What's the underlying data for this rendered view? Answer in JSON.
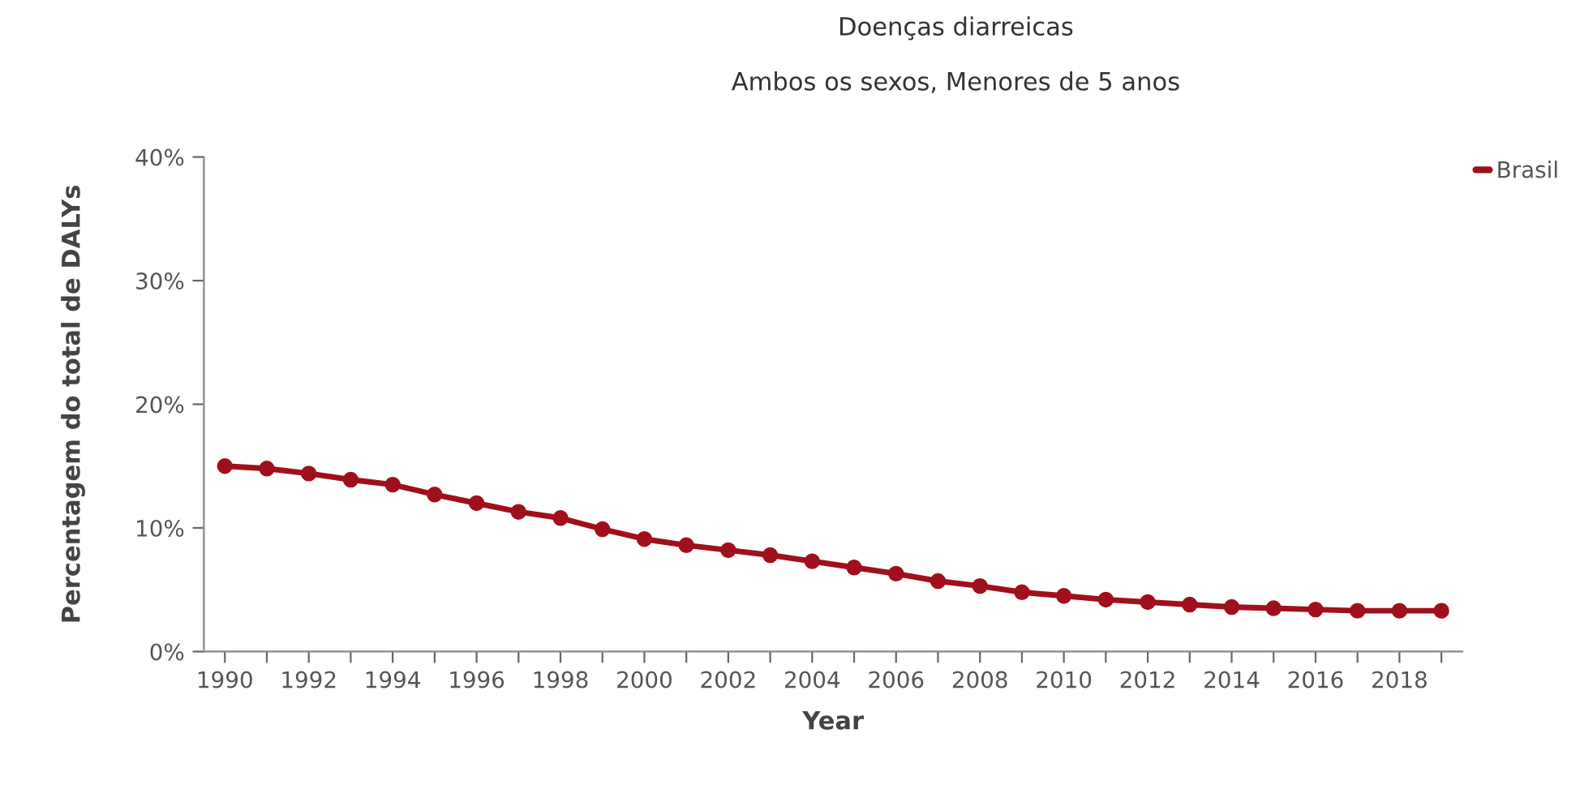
{
  "chart_data": {
    "type": "line",
    "title": "Doenças diarreicas",
    "subtitle": "Ambos os sexos, Menores de 5 anos",
    "xlabel": "Year",
    "ylabel": "Percentagem do total de DALYs",
    "x": [
      1990,
      1991,
      1992,
      1993,
      1994,
      1995,
      1996,
      1997,
      1998,
      1999,
      2000,
      2001,
      2002,
      2003,
      2004,
      2005,
      2006,
      2007,
      2008,
      2009,
      2010,
      2011,
      2012,
      2013,
      2014,
      2015,
      2016,
      2017,
      2018,
      2019
    ],
    "series": [
      {
        "name": "Brasil",
        "color": "#a0101c",
        "values": [
          15.0,
          14.8,
          14.4,
          13.9,
          13.5,
          12.7,
          12.0,
          11.3,
          10.8,
          9.9,
          9.1,
          8.6,
          8.2,
          7.8,
          7.3,
          6.8,
          6.3,
          5.7,
          5.3,
          4.8,
          4.5,
          4.2,
          4.0,
          3.8,
          3.6,
          3.5,
          3.4,
          3.3,
          3.3,
          3.3
        ]
      }
    ],
    "xlim": [
      1989.5,
      2019.5
    ],
    "xticks": [
      1990,
      {
        "value": 1991,
        "label": null
      },
      1992,
      {
        "value": 1993,
        "label": null
      },
      1994,
      {
        "value": 1995,
        "label": null
      },
      1996,
      {
        "value": 1997,
        "label": null
      },
      1998,
      {
        "value": 1999,
        "label": null
      },
      2000,
      {
        "value": 2001,
        "label": null
      },
      2002,
      {
        "value": 2003,
        "label": null
      },
      2004,
      {
        "value": 2005,
        "label": null
      },
      2006,
      {
        "value": 2007,
        "label": null
      },
      2008,
      {
        "value": 2009,
        "label": null
      },
      2010,
      {
        "value": 2011,
        "label": null
      },
      2012,
      {
        "value": 2013,
        "label": null
      },
      2014,
      {
        "value": 2015,
        "label": null
      },
      2016,
      {
        "value": 2017,
        "label": null
      },
      2018,
      {
        "value": 2019,
        "label": null
      }
    ],
    "ylim": [
      0,
      40
    ],
    "yticks": [
      {
        "value": 0,
        "label": "0%"
      },
      {
        "value": 10,
        "label": "10%"
      },
      {
        "value": 20,
        "label": "20%"
      },
      {
        "value": 30,
        "label": "30%"
      },
      {
        "value": 40,
        "label": "40%"
      }
    ],
    "grid": false,
    "legend": "top right",
    "marker": "circle",
    "line_style": "solid"
  }
}
